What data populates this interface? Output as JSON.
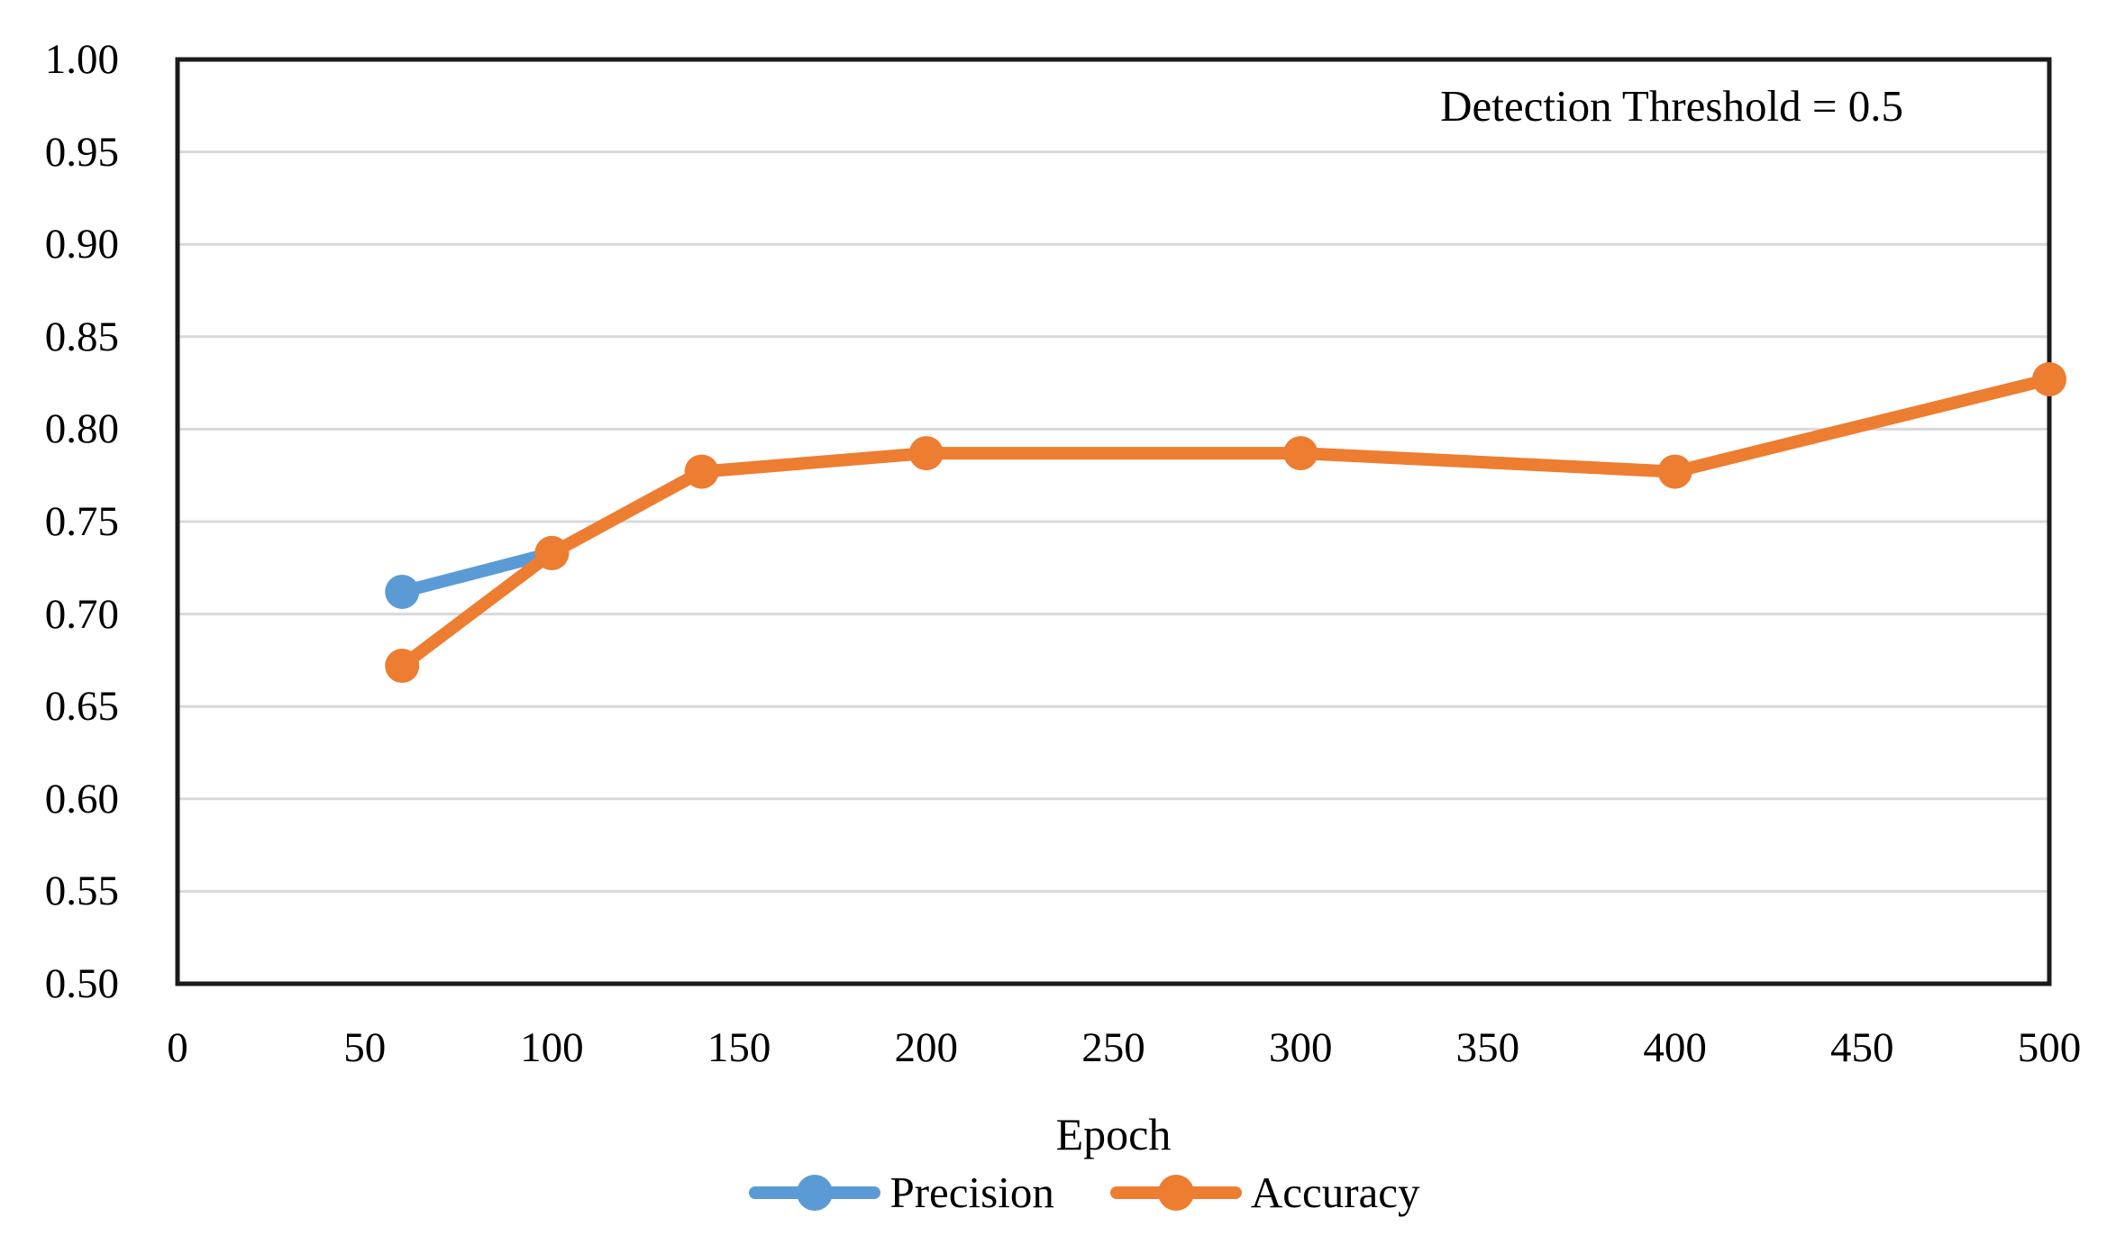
{
  "chart_data": {
    "type": "line",
    "title": "",
    "annotation": "Detection Threshold = 0.5",
    "xlabel": "Epoch",
    "ylabel": "",
    "xlim": [
      0,
      500
    ],
    "ylim": [
      0.5,
      1.0
    ],
    "xticks": [
      0,
      50,
      100,
      150,
      200,
      250,
      300,
      350,
      400,
      450,
      500
    ],
    "xtick_labels": [
      "0",
      "50",
      "100",
      "150",
      "200",
      "250",
      "300",
      "350",
      "400",
      "450",
      "500"
    ],
    "yticks": [
      0.5,
      0.55,
      0.6,
      0.65,
      0.7,
      0.75,
      0.8,
      0.85,
      0.9,
      0.95,
      1.0
    ],
    "ytick_labels": [
      "0.50",
      "0.55",
      "0.60",
      "0.65",
      "0.70",
      "0.75",
      "0.80",
      "0.85",
      "0.90",
      "0.95",
      "1.00"
    ],
    "grid": "horizontal-only",
    "legend_position": "bottom-center",
    "series": [
      {
        "name": "Precision",
        "color": "#5B9BD5",
        "x": [
          60,
          100
        ],
        "y": [
          0.712,
          0.733
        ]
      },
      {
        "name": "Accuracy",
        "color": "#ED7D31",
        "x": [
          60,
          100,
          140,
          200,
          300,
          400,
          500
        ],
        "y": [
          0.672,
          0.733,
          0.777,
          0.787,
          0.787,
          0.777,
          0.827
        ]
      }
    ],
    "colors": {
      "gridline": "#D9D9D9",
      "frame": "#1A1A1A",
      "text": "#000000",
      "background": "#FFFFFF"
    }
  }
}
